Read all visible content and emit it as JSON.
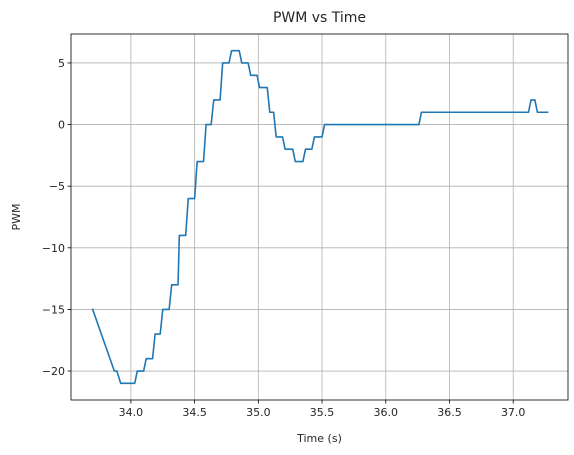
{
  "chart_data": {
    "type": "line",
    "title": "PWM vs Time",
    "xlabel": "Time (s)",
    "ylabel": "PWM",
    "xlim": [
      33.53,
      37.43
    ],
    "ylim": [
      -22.35,
      7.35
    ],
    "x_ticks": [
      34.0,
      34.5,
      35.0,
      35.5,
      36.0,
      36.5,
      37.0
    ],
    "x_tick_labels": [
      "34.0",
      "34.5",
      "35.0",
      "35.5",
      "36.0",
      "36.5",
      "37.0"
    ],
    "y_ticks": [
      5,
      0,
      -5,
      -10,
      -15,
      -20
    ],
    "y_tick_labels": [
      "5",
      "0",
      "−5",
      "−10",
      "−15",
      "−20"
    ],
    "grid": true,
    "series": [
      {
        "color": "#1f77b4",
        "points": [
          [
            33.7,
            -15
          ],
          [
            33.87,
            -20
          ],
          [
            33.89,
            -20
          ],
          [
            33.92,
            -21
          ],
          [
            34.03,
            -21
          ],
          [
            34.05,
            -20
          ],
          [
            34.1,
            -20
          ],
          [
            34.12,
            -19
          ],
          [
            34.17,
            -19
          ],
          [
            34.19,
            -17
          ],
          [
            34.23,
            -17
          ],
          [
            34.25,
            -15
          ],
          [
            34.3,
            -15
          ],
          [
            34.32,
            -13
          ],
          [
            34.37,
            -13
          ],
          [
            34.38,
            -9
          ],
          [
            34.43,
            -9
          ],
          [
            34.45,
            -6
          ],
          [
            34.5,
            -6
          ],
          [
            34.52,
            -3
          ],
          [
            34.57,
            -3
          ],
          [
            34.59,
            0
          ],
          [
            34.63,
            0
          ],
          [
            34.65,
            2
          ],
          [
            34.7,
            2
          ],
          [
            34.72,
            5
          ],
          [
            34.77,
            5
          ],
          [
            34.79,
            6
          ],
          [
            34.85,
            6
          ],
          [
            34.87,
            5
          ],
          [
            34.92,
            5
          ],
          [
            34.94,
            4
          ],
          [
            34.99,
            4
          ],
          [
            35.01,
            3
          ],
          [
            35.07,
            3
          ],
          [
            35.09,
            1
          ],
          [
            35.12,
            1
          ],
          [
            35.14,
            -1
          ],
          [
            35.19,
            -1
          ],
          [
            35.21,
            -2
          ],
          [
            35.27,
            -2
          ],
          [
            35.29,
            -3
          ],
          [
            35.35,
            -3
          ],
          [
            35.37,
            -2
          ],
          [
            35.42,
            -2
          ],
          [
            35.44,
            -1
          ],
          [
            35.5,
            -1
          ],
          [
            35.52,
            0
          ],
          [
            36.26,
            0
          ],
          [
            36.28,
            1
          ],
          [
            37.12,
            1
          ],
          [
            37.14,
            2
          ],
          [
            37.17,
            2
          ],
          [
            37.19,
            1
          ],
          [
            37.27,
            1
          ]
        ]
      }
    ]
  }
}
